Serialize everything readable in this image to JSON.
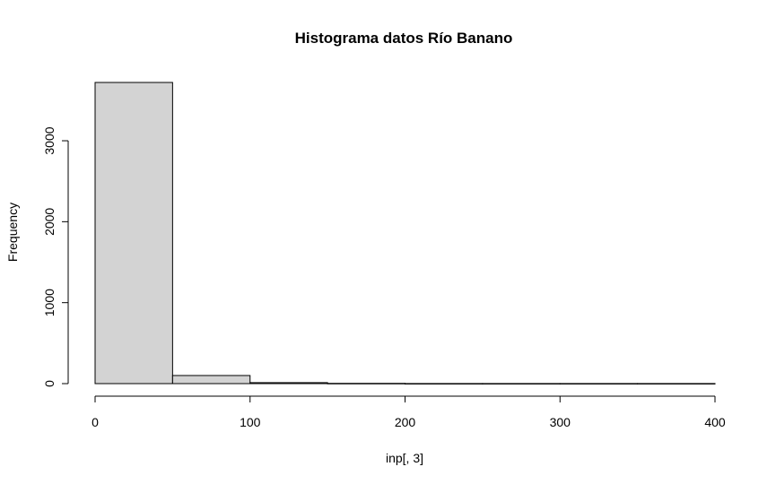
{
  "chart_data": {
    "type": "bar",
    "title": "Histograma datos Río Banano",
    "xlabel": "inp[, 3]",
    "ylabel": "Frequency",
    "bins": [
      {
        "start": 0,
        "end": 50,
        "count": 3720
      },
      {
        "start": 50,
        "end": 100,
        "count": 100
      },
      {
        "start": 100,
        "end": 150,
        "count": 12
      },
      {
        "start": 150,
        "end": 200,
        "count": 3
      },
      {
        "start": 200,
        "end": 250,
        "count": 1
      },
      {
        "start": 250,
        "end": 300,
        "count": 1
      },
      {
        "start": 300,
        "end": 350,
        "count": 1
      },
      {
        "start": 350,
        "end": 400,
        "count": 1
      }
    ],
    "xlim": [
      0,
      400
    ],
    "ylim": [
      0,
      3720
    ],
    "x_ticks": [
      0,
      100,
      200,
      300,
      400
    ],
    "y_ticks": [
      0,
      1000,
      2000,
      3000
    ],
    "bar_color": "#d3d3d3",
    "grid": false,
    "legend": "none"
  }
}
